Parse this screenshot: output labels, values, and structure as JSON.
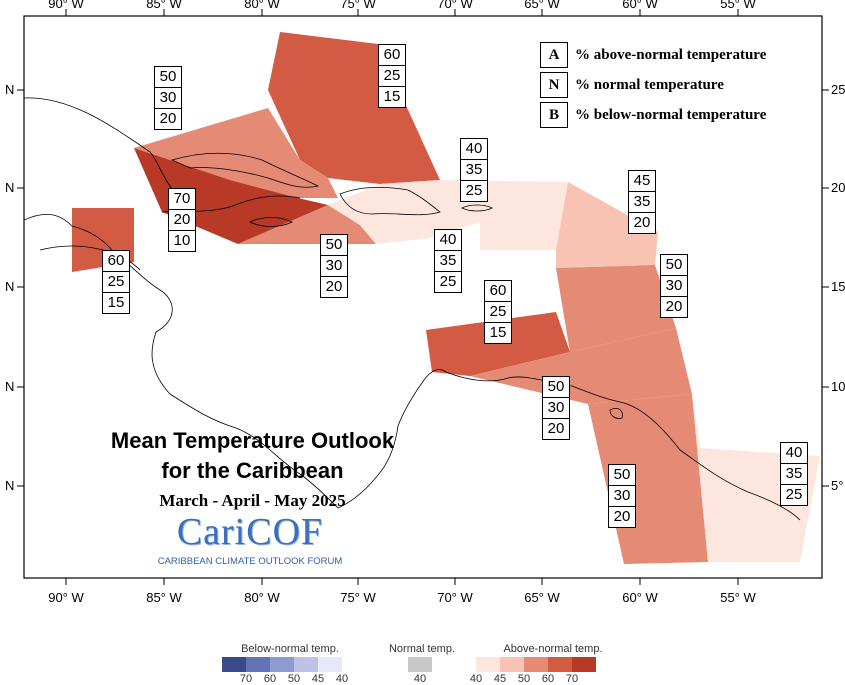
{
  "map": {
    "type": "choropleth",
    "projection": "lon-lat",
    "lon_range": [
      -92,
      -50
    ],
    "lat_range": [
      0,
      28
    ],
    "bottom_axis_labels": [
      "90° W",
      "85° W",
      "80° W",
      "75° W",
      "70° W",
      "65° W",
      "60° W",
      "55° W"
    ],
    "top_axis_labels": [
      "90° W",
      "85° W",
      "80° W",
      "75° W",
      "70° W",
      "65° W",
      "60° W",
      "55° W"
    ],
    "left_axis_labels": [
      "N",
      "N",
      "N",
      "N",
      "N"
    ],
    "right_axis_labels": [
      "25°",
      "20°",
      "15°",
      "10°",
      "5°"
    ]
  },
  "key": {
    "rows": [
      {
        "letter": "A",
        "text": "% above-normal temperature"
      },
      {
        "letter": "N",
        "text": "% normal temperature"
      },
      {
        "letter": "B",
        "text": "% below-normal temperature"
      }
    ]
  },
  "regions": [
    {
      "id": "bahamas",
      "A": "60",
      "N": "25",
      "B": "15",
      "color": "#d35a43"
    },
    {
      "id": "cuba",
      "A": "50",
      "N": "30",
      "B": "20",
      "color": "#e48a75"
    },
    {
      "id": "cayman",
      "A": "70",
      "N": "20",
      "B": "10",
      "color": "#b83a26"
    },
    {
      "id": "jamaica",
      "A": "50",
      "N": "30",
      "B": "20",
      "color": "#e48a75"
    },
    {
      "id": "belize",
      "A": "60",
      "N": "25",
      "B": "15",
      "color": "#d35a43"
    },
    {
      "id": "hispaniola",
      "A": "40",
      "N": "35",
      "B": "25",
      "color": "#fde6de"
    },
    {
      "id": "puerto-rico",
      "A": "40",
      "N": "35",
      "B": "25",
      "color": "#fde6de"
    },
    {
      "id": "northern-leewards",
      "A": "45",
      "N": "35",
      "B": "20",
      "color": "#f8c3b2"
    },
    {
      "id": "lesser-antilles",
      "A": "50",
      "N": "30",
      "B": "20",
      "color": "#e48a75"
    },
    {
      "id": "abc-islands",
      "A": "60",
      "N": "25",
      "B": "15",
      "color": "#d35a43"
    },
    {
      "id": "trinidad",
      "A": "50",
      "N": "30",
      "B": "20",
      "color": "#e48a75"
    },
    {
      "id": "guyana",
      "A": "50",
      "N": "30",
      "B": "20",
      "color": "#e48a75"
    },
    {
      "id": "suriname-guiana",
      "A": "40",
      "N": "35",
      "B": "25",
      "color": "#fde6de"
    }
  ],
  "title": {
    "line1": "Mean Temperature Outlook",
    "line2": "for the Caribbean",
    "period": "March - April - May 2025"
  },
  "logo": {
    "text": "CariCOF",
    "subtitle": "CARIBBEAN CLIMATE OUTLOOK FORUM"
  },
  "legend": {
    "below_title": "Below-normal temp.",
    "normal_title": "Normal temp.",
    "above_title": "Above-normal temp.",
    "below_labels": [
      "70",
      "60",
      "50",
      "45",
      "40"
    ],
    "normal_label": "40",
    "above_labels": [
      "40",
      "45",
      "50",
      "60",
      "70"
    ],
    "below_colors": [
      "#3b4a8c",
      "#6473b8",
      "#8f9ad0",
      "#bcc3e6",
      "#e6e9f7"
    ],
    "normal_color": "#c8c8c8",
    "above_colors": [
      "#fde6de",
      "#f8c3b2",
      "#e48a75",
      "#d35a43",
      "#b83a26"
    ]
  }
}
